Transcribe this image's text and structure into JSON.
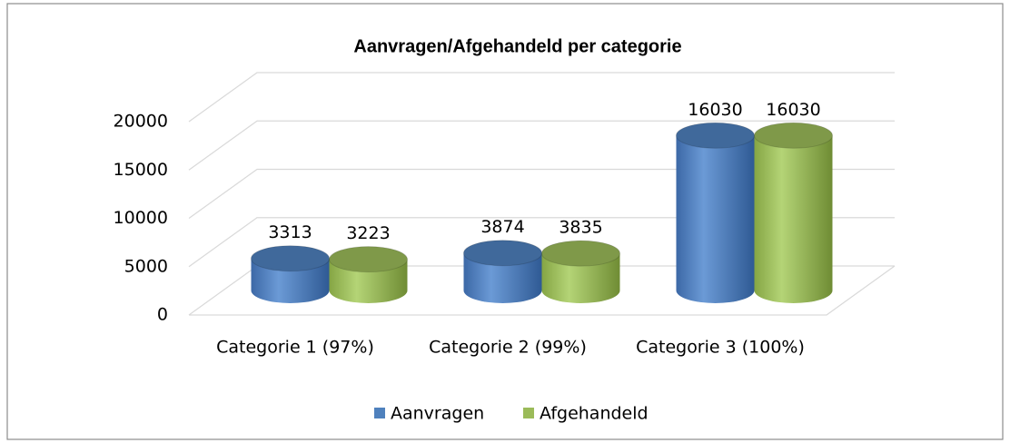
{
  "chart_data": {
    "type": "bar3d",
    "title": "Aanvragen/Afgehandeld per categorie",
    "categories": [
      "Categorie 1 (97%)",
      "Categorie 2 (99%)",
      "Categorie 3 (100%)"
    ],
    "series": [
      {
        "name": "Aanvragen",
        "color": "#4f81bd",
        "values": [
          3313,
          3874,
          16030
        ]
      },
      {
        "name": "Afgehandeld",
        "color": "#9bbb59",
        "values": [
          3223,
          3835,
          16030
        ]
      }
    ],
    "ylim": [
      0,
      20000
    ],
    "yticks": [
      0,
      5000,
      10000,
      15000,
      20000
    ],
    "grid": true,
    "legend": "bottom"
  }
}
